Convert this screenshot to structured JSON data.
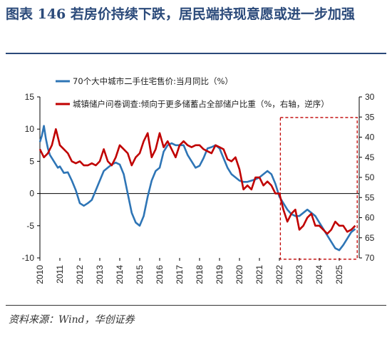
{
  "figure": {
    "title": "图表 146   若房价持续下跌，居民端持现意愿或进一步加强",
    "source": "资料来源：Wind，华创证券"
  },
  "chart_data": {
    "type": "line",
    "xlim": [
      2010,
      2026
    ],
    "ylim_left": [
      -10,
      15
    ],
    "ylim_right": [
      30,
      70
    ],
    "right_axis_reversed": true,
    "grid": false,
    "legend_position": "top-left",
    "x_tick_labels": [
      "2010",
      "2011",
      "2012",
      "2013",
      "2014",
      "2015",
      "2016",
      "2017",
      "2018",
      "2019",
      "2020",
      "2021",
      "2022",
      "2023",
      "2024",
      "2025"
    ],
    "y_left_ticks": [
      15,
      10,
      5,
      0,
      -5,
      -10
    ],
    "y_right_ticks": [
      30,
      35,
      40,
      45,
      50,
      55,
      60,
      65,
      70
    ],
    "highlight_box": {
      "x": [
        2022.05,
        2025.9
      ],
      "y_left": [
        -10.2,
        11.8
      ],
      "style": "dashed",
      "color": "#c00000"
    },
    "series": [
      {
        "name": "70个大中城市二手住宅售价:当月同比（%）",
        "axis": "left",
        "color": "#2e75b6",
        "x": [
          2010.0,
          2010.1,
          2010.2,
          2010.3,
          2010.4,
          2010.5,
          2010.6,
          2010.7,
          2010.8,
          2010.9,
          2011.0,
          2011.2,
          2011.4,
          2011.6,
          2011.8,
          2012.0,
          2012.2,
          2012.4,
          2012.6,
          2012.8,
          2013.0,
          2013.2,
          2013.4,
          2013.6,
          2013.8,
          2014.0,
          2014.2,
          2014.4,
          2014.6,
          2014.8,
          2015.0,
          2015.2,
          2015.4,
          2015.6,
          2015.8,
          2016.0,
          2016.2,
          2016.4,
          2016.6,
          2016.8,
          2017.0,
          2017.2,
          2017.4,
          2017.6,
          2017.8,
          2018.0,
          2018.2,
          2018.4,
          2018.6,
          2018.8,
          2019.0,
          2019.2,
          2019.4,
          2019.6,
          2019.8,
          2020.0,
          2020.2,
          2020.4,
          2020.6,
          2020.8,
          2021.0,
          2021.2,
          2021.4,
          2021.6,
          2021.8,
          2022.0,
          2022.2,
          2022.4,
          2022.6,
          2022.8,
          2023.0,
          2023.2,
          2023.4,
          2023.6,
          2023.8,
          2024.0,
          2024.2,
          2024.4,
          2024.6,
          2024.8,
          2025.0,
          2025.2,
          2025.4,
          2025.6,
          2025.8
        ],
        "values": [
          8.0,
          9.0,
          10.5,
          8.5,
          7.0,
          6.0,
          5.5,
          5.0,
          4.5,
          4.0,
          4.2,
          3.2,
          3.3,
          2.0,
          0.5,
          -1.5,
          -1.9,
          -1.5,
          -1.0,
          0.5,
          2.0,
          3.5,
          4.0,
          4.5,
          4.8,
          4.5,
          3.0,
          0.0,
          -3.0,
          -4.5,
          -5.0,
          -3.5,
          -0.5,
          2.0,
          3.5,
          4.0,
          6.5,
          7.5,
          7.8,
          7.5,
          7.5,
          7.5,
          6.0,
          5.0,
          4.0,
          4.3,
          5.5,
          7.0,
          7.2,
          7.5,
          7.0,
          5.5,
          4.0,
          3.0,
          2.5,
          2.0,
          1.8,
          1.8,
          2.0,
          2.2,
          2.5,
          3.0,
          3.5,
          3.0,
          1.5,
          -0.5,
          -1.5,
          -2.5,
          -3.2,
          -3.5,
          -3.5,
          -3.0,
          -2.5,
          -3.0,
          -3.5,
          -4.5,
          -5.5,
          -6.5,
          -7.5,
          -8.5,
          -8.8,
          -8.0,
          -7.0,
          -6.0,
          -5.5
        ]
      },
      {
        "name": "城镇储户问卷调查:倾向于更多储蓄占全部储户比重（%，右轴，逆序）",
        "axis": "right",
        "color": "#c00000",
        "x": [
          2010.0,
          2010.2,
          2010.4,
          2010.6,
          2010.8,
          2011.0,
          2011.2,
          2011.4,
          2011.6,
          2011.8,
          2012.0,
          2012.2,
          2012.4,
          2012.6,
          2012.8,
          2013.0,
          2013.2,
          2013.4,
          2013.6,
          2013.8,
          2014.0,
          2014.2,
          2014.4,
          2014.6,
          2014.8,
          2015.0,
          2015.2,
          2015.4,
          2015.6,
          2015.8,
          2016.0,
          2016.2,
          2016.4,
          2016.6,
          2016.8,
          2017.0,
          2017.2,
          2017.4,
          2017.6,
          2017.8,
          2018.0,
          2018.2,
          2018.4,
          2018.6,
          2018.8,
          2019.0,
          2019.2,
          2019.4,
          2019.6,
          2019.8,
          2020.0,
          2020.2,
          2020.4,
          2020.6,
          2020.8,
          2021.0,
          2021.2,
          2021.4,
          2021.6,
          2021.8,
          2022.0,
          2022.2,
          2022.4,
          2022.6,
          2022.8,
          2023.0,
          2023.2,
          2023.4,
          2023.6,
          2023.8,
          2024.0,
          2024.2,
          2024.4,
          2024.6,
          2024.8,
          2025.0,
          2025.2,
          2025.4,
          2025.6,
          2025.8
        ],
        "values": [
          43.0,
          45.0,
          44.0,
          42.0,
          38.0,
          42.0,
          43.0,
          44.0,
          46.0,
          46.5,
          46.0,
          47.0,
          47.0,
          46.5,
          47.0,
          46.0,
          43.0,
          46.0,
          47.0,
          45.0,
          42.0,
          43.0,
          44.0,
          47.0,
          45.0,
          44.0,
          41.0,
          39.0,
          45.0,
          43.0,
          39.0,
          42.5,
          41.0,
          43.0,
          45.0,
          42.0,
          41.0,
          42.0,
          42.5,
          42.0,
          42.0,
          43.0,
          43.5,
          44.0,
          42.0,
          42.5,
          43.0,
          45.5,
          46.0,
          45.0,
          48.0,
          53.0,
          52.0,
          53.0,
          50.0,
          50.0,
          52.0,
          51.0,
          52.0,
          54.0,
          54.0,
          58.0,
          61.0,
          59.0,
          58.0,
          63.0,
          62.0,
          60.0,
          59.0,
          62.0,
          62.0,
          63.0,
          64.0,
          63.0,
          61.0,
          62.0,
          62.0,
          63.5,
          63.0,
          62.0
        ]
      }
    ]
  }
}
